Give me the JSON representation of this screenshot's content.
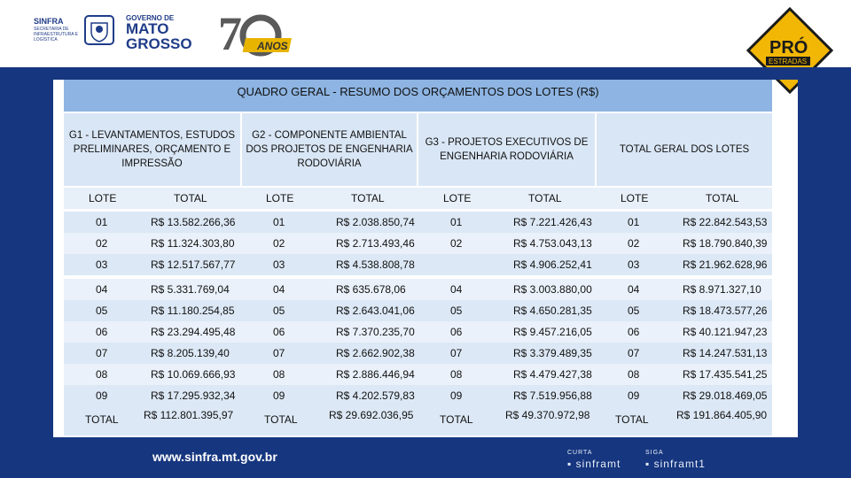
{
  "header": {
    "sinfra": "SINFRA",
    "sinfra_sub": "SECRETARIA DE INFRAESTRUTURA E LOGÍSTICA",
    "gov_small": "GOVERNO DE",
    "gov_line1": "MATO",
    "gov_line2": "GROSSO",
    "anos_text": "ANOS",
    "pro_text": "PRÓ",
    "estradas_text": "ESTRADAS"
  },
  "table": {
    "title": "QUADRO GERAL - RESUMO DOS ORÇAMENTOS DOS LOTES (R$)",
    "groups": [
      "G1 - LEVANTAMENTOS, ESTUDOS PRELIMINARES, ORÇAMENTO E IMPRESSÃO",
      "G2 - COMPONENTE AMBIENTAL DOS PROJETOS DE ENGENHARIA RODOVIÁRIA",
      "G3 - PROJETOS EXECUTIVOS DE ENGENHARIA RODOVIÁRIA",
      "TOTAL GERAL DOS LOTES"
    ],
    "col_lote": "LOTE",
    "col_total": "TOTAL",
    "rows": [
      {
        "g1_lote": "01",
        "g1_total": "R$ 13.582.266,36",
        "g2_lote": "01",
        "g2_total": "R$ 2.038.850,74",
        "g3_lote": "01",
        "g3_total": "R$ 7.221.426,43",
        "t_lote": "01",
        "t_total": "R$ 22.842.543,53"
      },
      {
        "g1_lote": "02",
        "g1_total": "R$ 11.324.303,80",
        "g2_lote": "02",
        "g2_total": "R$ 2.713.493,46",
        "g3_lote": "02",
        "g3_total": "R$ 4.753.043,13",
        "t_lote": "02",
        "t_total": "R$ 18.790.840,39"
      },
      {
        "g1_lote": "03",
        "g1_total": "R$ 12.517.567,77",
        "g2_lote": "03",
        "g2_total": "R$ 4.538.808,78",
        "g3_lote": "",
        "g3_total": "R$ 4.906.252,41",
        "t_lote": "03",
        "t_total": "R$ 21.962.628,96"
      },
      {
        "g1_lote": "04",
        "g1_total": "R$ 5.331.769,04",
        "g2_lote": "04",
        "g2_total": "R$ 635.678,06",
        "g3_lote": "04",
        "g3_total": "R$ 3.003.880,00",
        "t_lote": "04",
        "t_total": "R$ 8.971.327,10"
      },
      {
        "g1_lote": "05",
        "g1_total": "R$ 11.180.254,85",
        "g2_lote": "05",
        "g2_total": "R$ 2.643.041,06",
        "g3_lote": "05",
        "g3_total": "R$ 4.650.281,35",
        "t_lote": "05",
        "t_total": "R$ 18.473.577,26"
      },
      {
        "g1_lote": "06",
        "g1_total": "R$ 23.294.495,48",
        "g2_lote": "06",
        "g2_total": "R$ 7.370.235,70",
        "g3_lote": "06",
        "g3_total": "R$ 9.457.216,05",
        "t_lote": "06",
        "t_total": "R$ 40.121.947,23"
      },
      {
        "g1_lote": "07",
        "g1_total": "R$ 8.205.139,40",
        "g2_lote": "07",
        "g2_total": "R$ 2.662.902,38",
        "g3_lote": "07",
        "g3_total": "R$ 3.379.489,35",
        "t_lote": "07",
        "t_total": "R$ 14.247.531,13"
      },
      {
        "g1_lote": "08",
        "g1_total": "R$ 10.069.666,93",
        "g2_lote": "08",
        "g2_total": "R$ 2.886.446,94",
        "g3_lote": "08",
        "g3_total": "R$ 4.479.427,38",
        "t_lote": "08",
        "t_total": "R$ 17.435.541,25"
      },
      {
        "g1_lote": "09",
        "g1_total": "R$ 17.295.932,34",
        "g2_lote": "09",
        "g2_total": "R$ 4.202.579,83",
        "g3_lote": "09",
        "g3_total": "R$ 7.519.956,88",
        "t_lote": "09",
        "t_total": "R$ 29.018.469,05"
      }
    ],
    "totals": {
      "g1_label": "TOTAL",
      "g1_total": "R$ 112.801.395,97",
      "g2_label": "TOTAL",
      "g2_total": "R$ 29.692.036,95",
      "g3_label": "TOTAL",
      "g3_total": "R$ 49.370.972,98",
      "t_label": "TOTAL",
      "t_total": "R$ 191.864.405,90"
    }
  },
  "footer": {
    "website": "www.sinfra.mt.gov.br",
    "curta_label": "CURTA",
    "curta_handle": "sinframt",
    "siga_label": "SIGA",
    "siga_handle": "sinframt1"
  },
  "colors": {
    "navy": "#16367f",
    "title_blue": "#8db4e2",
    "row_blue": "#dce8f5"
  }
}
